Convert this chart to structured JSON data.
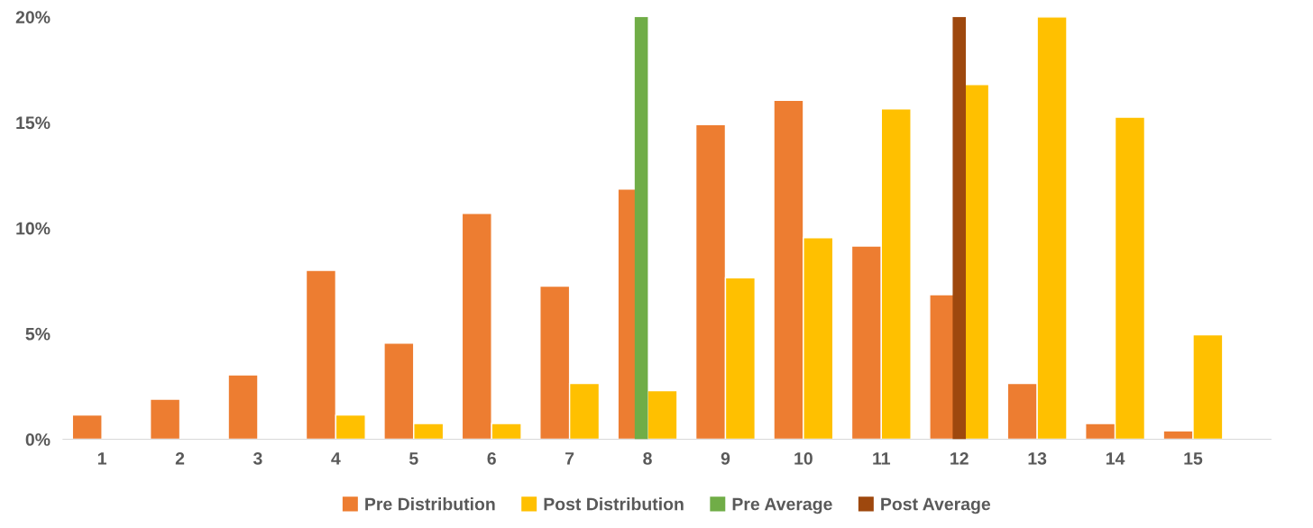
{
  "chart_data": {
    "type": "bar",
    "x": [
      1,
      2,
      3,
      4,
      5,
      6,
      7,
      8,
      9,
      10,
      11,
      12,
      13,
      14,
      15
    ],
    "series": [
      {
        "name": "Pre Distribution",
        "color": "#ed7d31",
        "values": [
          1.15,
          1.9,
          3.05,
          8.0,
          4.55,
          10.7,
          7.25,
          11.85,
          14.9,
          16.05,
          9.15,
          6.85,
          2.65,
          0.75,
          0.4
        ]
      },
      {
        "name": "Post Distribution",
        "color": "#ffc000",
        "values": [
          null,
          null,
          null,
          1.15,
          0.75,
          0.75,
          2.65,
          2.3,
          7.65,
          9.55,
          15.65,
          16.8,
          20,
          15.25,
          4.95
        ]
      }
    ],
    "ref_lines": [
      {
        "axis": "x",
        "value": 7.92,
        "label": "Pre Average",
        "color": "#70ad47"
      },
      {
        "axis": "x",
        "value": 12.0,
        "label": "Post Average",
        "color": "#9e480e"
      }
    ],
    "xlim": [
      0.5,
      16.0
    ],
    "xticks": [
      1,
      2,
      3,
      4,
      5,
      6,
      7,
      8,
      9,
      10,
      11,
      12,
      13,
      14,
      15
    ],
    "ylim": [
      0,
      20
    ],
    "yticks": [
      {
        "value": 0,
        "label": "0%"
      },
      {
        "value": 5,
        "label": "5%"
      },
      {
        "value": 10,
        "label": "10%"
      },
      {
        "value": 15,
        "label": "15%"
      },
      {
        "value": 20,
        "label": "20%"
      }
    ],
    "legend": "bottom"
  }
}
